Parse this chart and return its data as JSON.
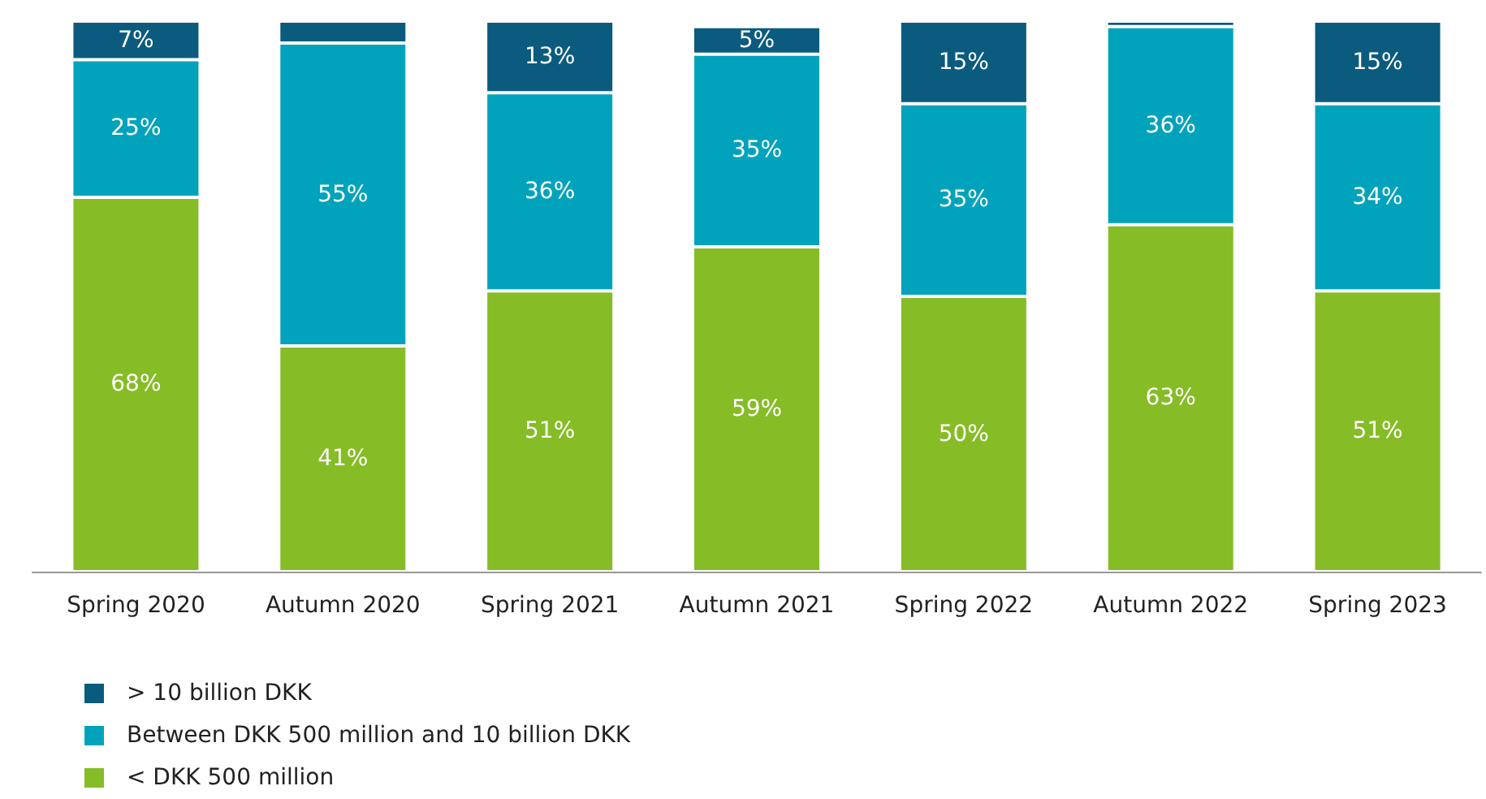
{
  "chart_data": {
    "type": "bar",
    "stacked": true,
    "categories": [
      "Spring 2020",
      "Autumn 2020",
      "Spring 2021",
      "Autumn 2021",
      "Spring 2022",
      "Autumn 2022",
      "Spring 2023"
    ],
    "ylim": [
      0,
      100
    ],
    "series": [
      {
        "name": "< DKK 500 million",
        "color": "#86bc25",
        "values": [
          68,
          41,
          51,
          59,
          50,
          63,
          51
        ],
        "value_labels": [
          "68%",
          "41%",
          "51%",
          "59%",
          "50%",
          "63%",
          "51%"
        ]
      },
      {
        "name": "Between DKK 500 million and 10 billion DKK",
        "color": "#00a3bb",
        "values": [
          25,
          55,
          36,
          35,
          35,
          36,
          34
        ],
        "value_labels": [
          "25%",
          "55%",
          "36%",
          "35%",
          "35%",
          "36%",
          "34%"
        ]
      },
      {
        "name": "> 10 billion DKK",
        "color": "#0b5b7f",
        "values": [
          7,
          4,
          13,
          5,
          15,
          1,
          15
        ],
        "value_labels": [
          "7%",
          null,
          "13%",
          "5%",
          "15%",
          null,
          "15%"
        ]
      }
    ],
    "grid": false,
    "legend": "bottom left"
  }
}
